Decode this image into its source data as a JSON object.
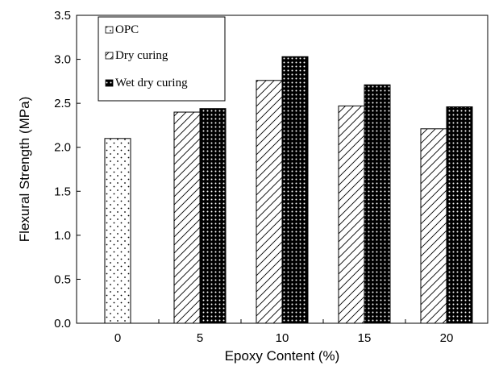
{
  "chart_data": {
    "type": "bar",
    "categories": [
      "0",
      "5",
      "10",
      "15",
      "20"
    ],
    "series": [
      {
        "name": "OPC",
        "values": [
          2.1,
          null,
          null,
          null,
          null
        ],
        "pattern": "dots"
      },
      {
        "name": "Dry curing",
        "values": [
          null,
          2.4,
          2.76,
          2.47,
          2.21
        ],
        "pattern": "hatch"
      },
      {
        "name": "Wet dry curing",
        "values": [
          null,
          2.44,
          3.03,
          2.71,
          2.46
        ],
        "pattern": "dense-dots"
      }
    ],
    "xlabel": "Epoxy Content (%)",
    "ylabel": "Flexural Strength (MPa)",
    "ylim": [
      0,
      3.5
    ],
    "yticks": [
      "0.0",
      "0.5",
      "1.0",
      "1.5",
      "2.0",
      "2.5",
      "3.0",
      "3.5"
    ],
    "legend_position": "top-left",
    "grid": false
  }
}
